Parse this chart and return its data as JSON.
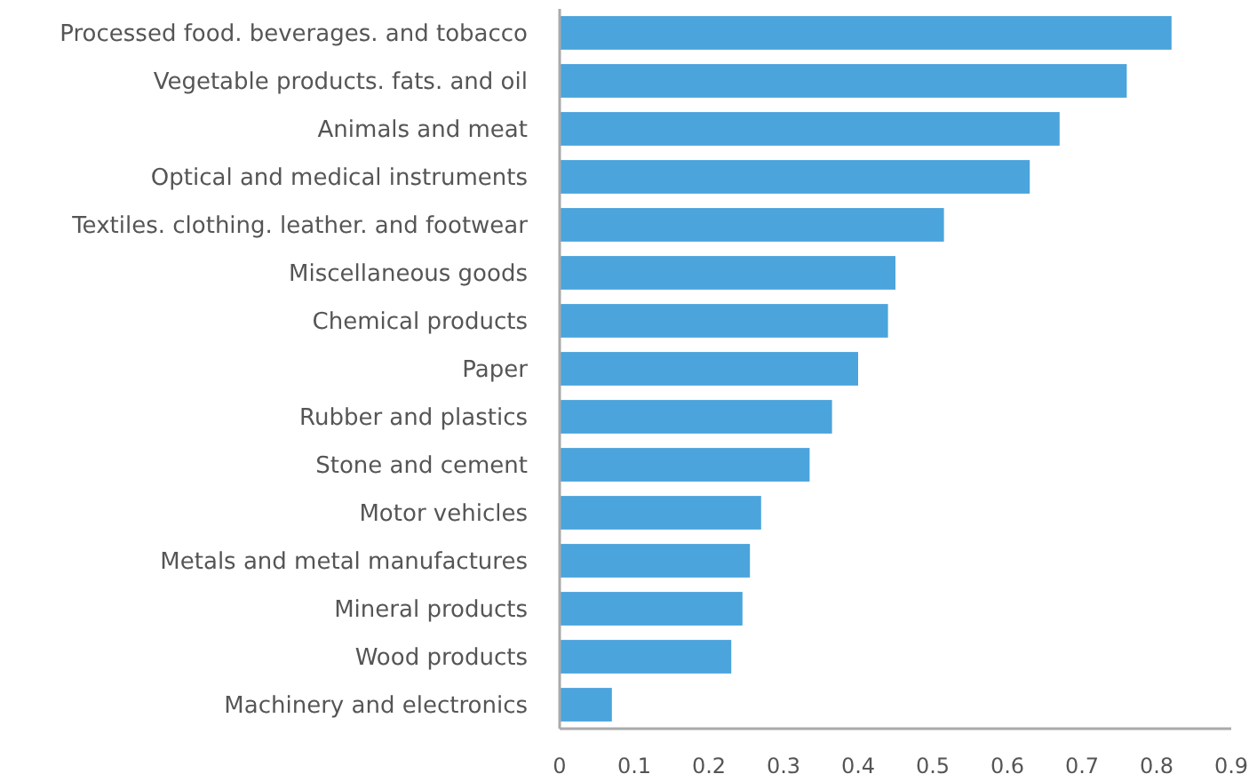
{
  "chart_data": {
    "type": "bar",
    "orientation": "horizontal",
    "categories": [
      "Processed food. beverages. and tobacco",
      "Vegetable products. fats. and oil",
      "Animals and meat",
      "Optical and medical instruments",
      "Textiles. clothing. leather. and footwear",
      "Miscellaneous goods",
      "Chemical products",
      "Paper",
      "Rubber and plastics",
      "Stone and cement",
      "Motor vehicles",
      "Metals and metal manufactures",
      "Mineral products",
      "Wood products",
      "Machinery and electronics"
    ],
    "values": [
      0.82,
      0.76,
      0.67,
      0.63,
      0.515,
      0.45,
      0.44,
      0.4,
      0.365,
      0.335,
      0.27,
      0.255,
      0.245,
      0.23,
      0.07
    ],
    "color": "#4ba4dc",
    "xlim": [
      0,
      0.9
    ],
    "xticks": [
      0,
      0.1,
      0.2,
      0.3,
      0.4,
      0.5,
      0.6,
      0.7,
      0.8,
      0.9
    ],
    "grid": false
  }
}
